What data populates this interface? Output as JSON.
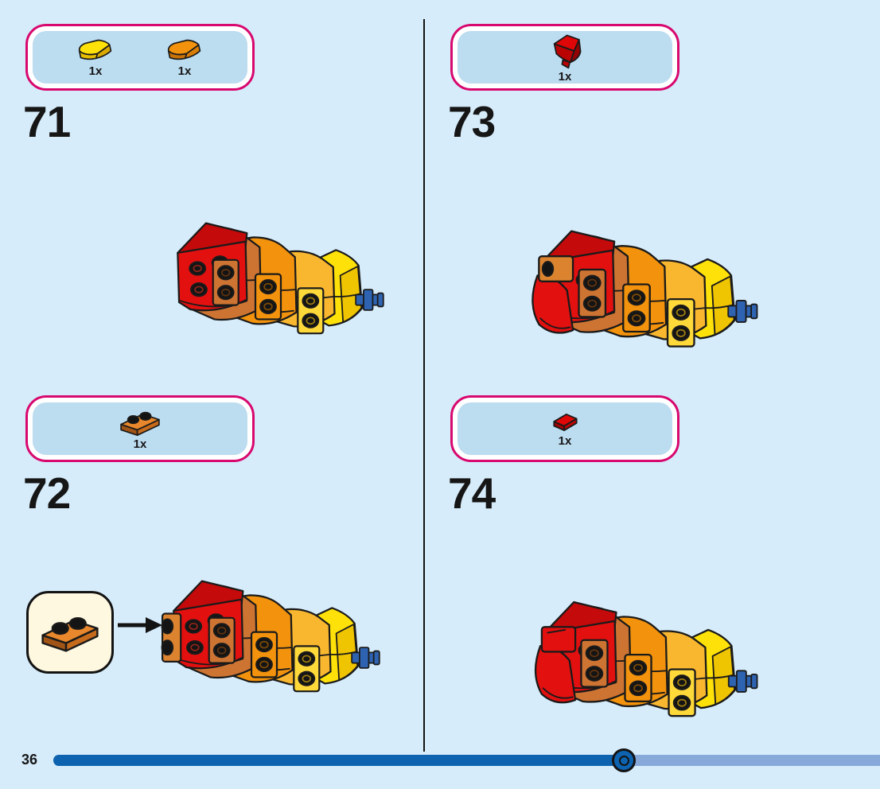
{
  "page": {
    "number": "36"
  },
  "steps": [
    {
      "number": "71",
      "model_variant": "base",
      "parts": [
        {
          "icon": "curved-slope-1x2-yellow",
          "color": "#FFE10A",
          "count": "1x"
        },
        {
          "icon": "curved-slope-1x2-orange",
          "color": "#F2920D",
          "count": "1x"
        }
      ]
    },
    {
      "number": "72",
      "model_variant": "front-plate",
      "parts": [
        {
          "icon": "plate-1x2-orange",
          "color": "#E8872B",
          "count": "1x"
        }
      ],
      "callout": {
        "icon": "plate-1x2-orange"
      }
    },
    {
      "number": "73",
      "model_variant": "mouth-wedge",
      "parts": [
        {
          "icon": "wedge-2x2-red",
          "color": "#DE0606",
          "count": "1x"
        }
      ]
    },
    {
      "number": "74",
      "model_variant": "mouth-tile",
      "parts": [
        {
          "icon": "tile-1x1-red",
          "color": "#E00707",
          "count": "1x"
        }
      ]
    }
  ],
  "progress": {
    "page_label": "36",
    "fraction": 0.69
  },
  "colors": {
    "background": "#D6ECFA",
    "panel_fill": "#BCDCF0",
    "panel_border": "#D8086F",
    "callout_fill": "#FFF8E0",
    "bar_fill": "#0E63B0",
    "bar_track": "#86A9DA",
    "red": "#E31010",
    "dark_orange": "#CE7433",
    "bright_orange": "#F2920D",
    "golden": "#F9B72F",
    "yellow": "#FFE10A",
    "axle_blue": "#2E63B1",
    "stud_black": "#141414"
  }
}
